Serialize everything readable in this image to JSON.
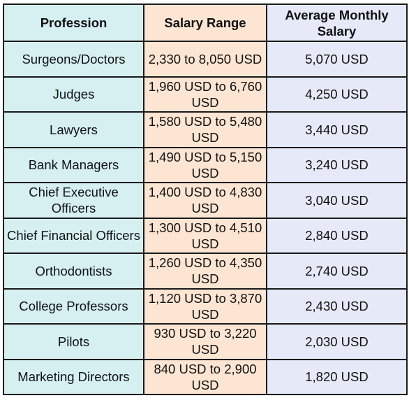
{
  "table": {
    "headers": [
      "Profession",
      "Salary Range",
      "Average Monthly Salary"
    ],
    "rows": [
      {
        "profession": "Surgeons/Doctors",
        "range": "2,330 to 8,050 USD",
        "average": "5,070 USD"
      },
      {
        "profession": "Judges",
        "range": "1,960 USD to 6,760 USD",
        "average": "4,250 USD"
      },
      {
        "profession": "Lawyers",
        "range": "1,580 USD to 5,480 USD",
        "average": "3,440 USD"
      },
      {
        "profession": "Bank Managers",
        "range": "1,490 USD to 5,150 USD",
        "average": "3,240 USD"
      },
      {
        "profession": "Chief Executive Officers",
        "range": "1,400 USD to 4,830 USD",
        "average": "3,040 USD"
      },
      {
        "profession": "Chief Financial Officers",
        "range": "1,300 USD to 4,510 USD",
        "average": "2,840 USD"
      },
      {
        "profession": "Orthodontists",
        "range": "1,260 USD to 4,350 USD",
        "average": "2,740 USD"
      },
      {
        "profession": "College Professors",
        "range": "1,120 USD to 3,870 USD",
        "average": "2,430 USD"
      },
      {
        "profession": "Pilots",
        "range": "930 USD to 3,220 USD",
        "average": "2,030 USD"
      },
      {
        "profession": "Marketing Directors",
        "range": "840 USD to 2,900 USD",
        "average": "1,820 USD"
      }
    ]
  },
  "colors": {
    "profession_column": "#d6f0f2",
    "range_column": "#fde5d3",
    "average_column": "#e6e9f7",
    "border": "#1a1a1a"
  }
}
